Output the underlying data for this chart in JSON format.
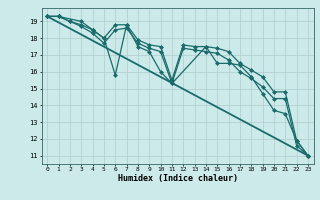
{
  "title": "",
  "xlabel": "Humidex (Indice chaleur)",
  "bg_color": "#cdeaea",
  "grid_color": "#b0cccc",
  "line_color": "#1a6b6b",
  "xlim": [
    -0.5,
    23.5
  ],
  "ylim": [
    10.5,
    19.8
  ],
  "xticks": [
    0,
    1,
    2,
    3,
    4,
    5,
    6,
    7,
    8,
    9,
    10,
    11,
    12,
    13,
    14,
    15,
    16,
    17,
    18,
    19,
    20,
    21,
    22,
    23
  ],
  "yticks": [
    11,
    12,
    13,
    14,
    15,
    16,
    17,
    18,
    19
  ],
  "series": [
    {
      "x": [
        0,
        1,
        2,
        3,
        4,
        5,
        6,
        7,
        8,
        9,
        10,
        11,
        12,
        13,
        14,
        15,
        16,
        17,
        18,
        19,
        20,
        21,
        22,
        23
      ],
      "y": [
        19.3,
        19.3,
        19.0,
        18.8,
        18.5,
        18.0,
        18.8,
        18.8,
        17.9,
        17.6,
        17.5,
        15.5,
        17.6,
        17.5,
        17.5,
        17.4,
        17.2,
        16.5,
        16.1,
        15.7,
        14.8,
        14.8,
        11.9,
        11.0
      ],
      "marker": "D",
      "ms": 2.0,
      "lw": 0.9
    },
    {
      "x": [
        0,
        1,
        2,
        3,
        4,
        5,
        6,
        7,
        8,
        9,
        10,
        11,
        12,
        13,
        14,
        15,
        16,
        17,
        18,
        19,
        20,
        21,
        22,
        23
      ],
      "y": [
        19.3,
        19.3,
        19.0,
        18.7,
        18.3,
        17.7,
        18.5,
        18.6,
        17.7,
        17.4,
        17.2,
        15.3,
        17.4,
        17.3,
        17.2,
        17.1,
        16.7,
        16.0,
        15.6,
        15.1,
        14.4,
        14.4,
        11.6,
        11.0
      ],
      "marker": "D",
      "ms": 2.0,
      "lw": 0.9
    },
    {
      "x": [
        0,
        1,
        3,
        4,
        5,
        6,
        7,
        8,
        9,
        10,
        11,
        14,
        15,
        16,
        17,
        18,
        19,
        20,
        21,
        22,
        23
      ],
      "y": [
        19.3,
        19.3,
        19.0,
        18.5,
        18.0,
        15.8,
        18.8,
        17.5,
        17.2,
        16.0,
        15.3,
        17.5,
        16.5,
        16.5,
        16.4,
        15.7,
        14.7,
        13.7,
        13.5,
        11.9,
        11.0
      ],
      "marker": "D",
      "ms": 2.0,
      "lw": 0.9
    },
    {
      "x": [
        0,
        23
      ],
      "y": [
        19.3,
        11.0
      ],
      "marker": null,
      "ms": 0,
      "lw": 1.3
    }
  ]
}
